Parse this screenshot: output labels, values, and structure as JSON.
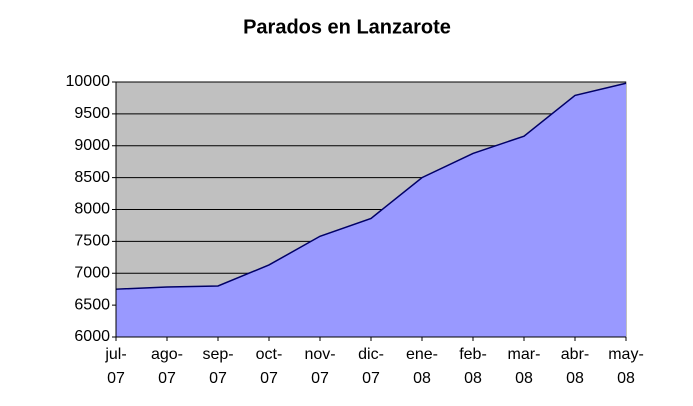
{
  "chart_data": {
    "type": "area",
    "title": "Parados en Lanzarote",
    "categories": [
      "jul-07",
      "ago-07",
      "sep-07",
      "oct-07",
      "nov-07",
      "dic-07",
      "ene-08",
      "feb-08",
      "mar-08",
      "abr-08",
      "may-08"
    ],
    "values": [
      6750,
      6785,
      6800,
      7130,
      7580,
      7860,
      8500,
      8880,
      9150,
      9790,
      9980
    ],
    "color": "#9999ff",
    "line_color": "#000066",
    "background": "#c0c0c0",
    "ylim": [
      6000,
      10000
    ],
    "yticks": [
      6000,
      6500,
      7000,
      7500,
      8000,
      8500,
      9000,
      9500,
      10000
    ],
    "grid": true
  }
}
